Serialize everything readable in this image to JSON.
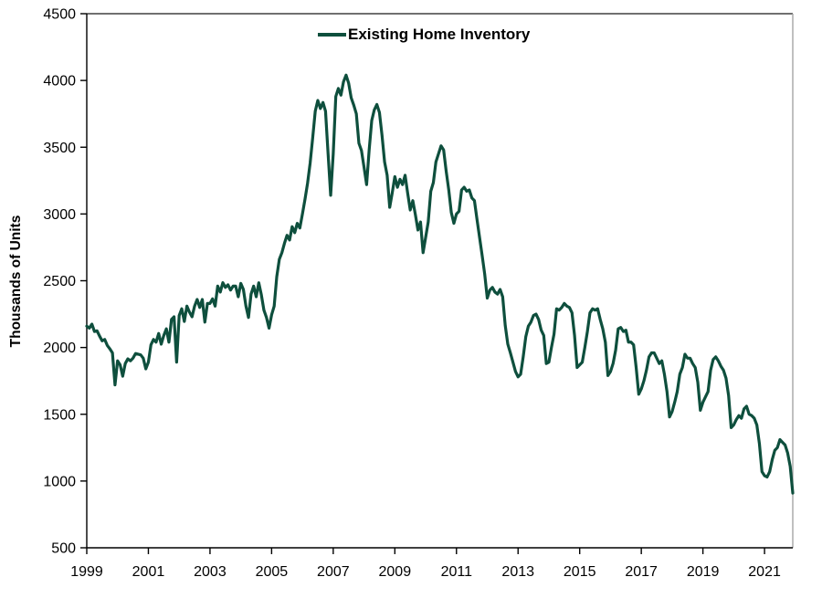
{
  "chart_data": {
    "type": "line",
    "title": "",
    "xlabel": "",
    "ylabel": "Thousands of Units",
    "legend_position": "top-center",
    "grid": false,
    "x_frequency": "monthly",
    "x_start": "1999-01",
    "x_end": "2021-12",
    "x_tick_years": [
      1999,
      2001,
      2003,
      2005,
      2007,
      2009,
      2011,
      2013,
      2015,
      2017,
      2019,
      2021
    ],
    "y_ticks": [
      500,
      1000,
      1500,
      2000,
      2500,
      3000,
      3500,
      4000,
      4500
    ],
    "ylim": [
      500,
      4500
    ],
    "line_color": "#0e4f3d",
    "frame_top_color": "#404040",
    "frame_right_color": "#a6a6a6",
    "axis_color": "#000000",
    "series": [
      {
        "name": "Existing Home Inventory",
        "values": [
          2160,
          2145,
          2175,
          2120,
          2125,
          2085,
          2050,
          2060,
          2015,
          1990,
          1960,
          1720,
          1900,
          1870,
          1785,
          1880,
          1915,
          1900,
          1920,
          1955,
          1950,
          1945,
          1920,
          1840,
          1890,
          2020,
          2060,
          2040,
          2105,
          2025,
          2090,
          2140,
          2040,
          2210,
          2230,
          1890,
          2240,
          2290,
          2195,
          2310,
          2265,
          2230,
          2310,
          2360,
          2300,
          2360,
          2190,
          2330,
          2330,
          2365,
          2310,
          2460,
          2415,
          2485,
          2450,
          2470,
          2430,
          2460,
          2460,
          2380,
          2480,
          2435,
          2310,
          2225,
          2400,
          2460,
          2380,
          2485,
          2395,
          2280,
          2225,
          2145,
          2245,
          2310,
          2530,
          2660,
          2710,
          2780,
          2840,
          2805,
          2905,
          2860,
          2930,
          2895,
          3000,
          3110,
          3230,
          3380,
          3570,
          3770,
          3850,
          3790,
          3835,
          3770,
          3450,
          3140,
          3450,
          3880,
          3940,
          3890,
          3990,
          4040,
          3980,
          3870,
          3815,
          3750,
          3530,
          3475,
          3350,
          3220,
          3480,
          3700,
          3780,
          3820,
          3760,
          3590,
          3390,
          3290,
          3050,
          3160,
          3280,
          3200,
          3260,
          3220,
          3290,
          3155,
          3030,
          3100,
          2995,
          2880,
          2940,
          2710,
          2825,
          2940,
          3170,
          3235,
          3390,
          3450,
          3510,
          3480,
          3320,
          3180,
          3010,
          2930,
          3000,
          3020,
          3180,
          3200,
          3170,
          3180,
          3120,
          3100,
          2960,
          2825,
          2690,
          2550,
          2370,
          2430,
          2450,
          2415,
          2400,
          2435,
          2380,
          2165,
          2025,
          1960,
          1890,
          1820,
          1780,
          1800,
          1930,
          2080,
          2160,
          2190,
          2240,
          2250,
          2210,
          2130,
          2090,
          1880,
          1890,
          2000,
          2100,
          2290,
          2280,
          2300,
          2330,
          2310,
          2300,
          2260,
          2090,
          1850,
          1870,
          1890,
          2000,
          2120,
          2260,
          2290,
          2280,
          2290,
          2210,
          2140,
          2040,
          1790,
          1820,
          1880,
          1980,
          2140,
          2150,
          2120,
          2130,
          2040,
          2040,
          2020,
          1850,
          1650,
          1690,
          1750,
          1830,
          1930,
          1960,
          1960,
          1920,
          1880,
          1900,
          1800,
          1670,
          1480,
          1520,
          1590,
          1670,
          1800,
          1850,
          1950,
          1920,
          1920,
          1880,
          1850,
          1740,
          1530,
          1590,
          1630,
          1670,
          1830,
          1910,
          1930,
          1900,
          1860,
          1830,
          1770,
          1640,
          1400,
          1420,
          1460,
          1490,
          1470,
          1540,
          1560,
          1500,
          1490,
          1470,
          1420,
          1280,
          1070,
          1040,
          1030,
          1070,
          1160,
          1230,
          1250,
          1310,
          1290,
          1270,
          1210,
          1110,
          910
        ]
      }
    ]
  },
  "legend": {
    "label": "Existing Home Inventory"
  },
  "axes": {
    "y_title": "Thousands of Units"
  }
}
